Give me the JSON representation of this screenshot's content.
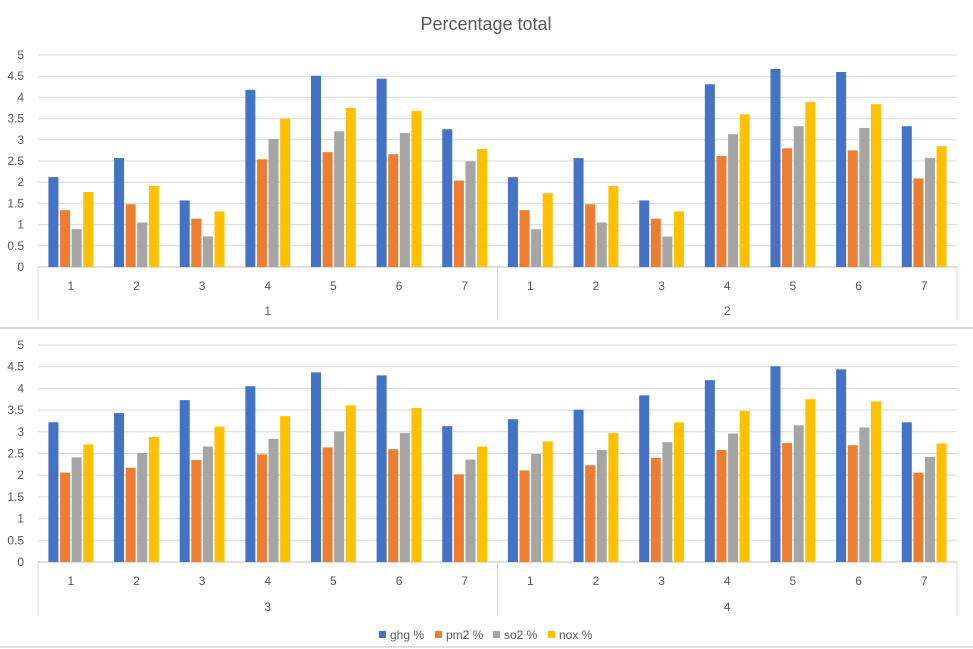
{
  "chart_data": {
    "type": "bar",
    "title": "Percentage total",
    "xlabel": "",
    "ylabel": "",
    "ylim": [
      0,
      5
    ],
    "y_ticks": [
      "0",
      "0.5",
      "1",
      "1.5",
      "2",
      "2.5",
      "3",
      "3.5",
      "4",
      "4.5",
      "5"
    ],
    "grid": true,
    "legend_position": "bottom",
    "series_names": [
      "ghg %",
      "pm2 %",
      "so2 %",
      "nox %"
    ],
    "colors": [
      "#4472C4",
      "#ED7D31",
      "#A5A5A5",
      "#FFC000"
    ],
    "panels": [
      {
        "groups": [
          {
            "label": "1",
            "categories": [
              "1",
              "2",
              "3",
              "4",
              "5",
              "6",
              "7"
            ],
            "values": [
              [
                2.12,
                1.34,
                0.89,
                1.77
              ],
              [
                2.57,
                1.48,
                1.05,
                1.91
              ],
              [
                1.57,
                1.14,
                0.72,
                1.31
              ],
              [
                4.18,
                2.54,
                3.02,
                3.5
              ],
              [
                4.51,
                2.71,
                3.2,
                3.75
              ],
              [
                4.44,
                2.66,
                3.16,
                3.68
              ],
              [
                3.25,
                2.04,
                2.49,
                2.78
              ]
            ]
          },
          {
            "label": "2",
            "categories": [
              "1",
              "2",
              "3",
              "4",
              "5",
              "6",
              "7"
            ],
            "values": [
              [
                2.12,
                1.34,
                0.89,
                1.74
              ],
              [
                2.57,
                1.48,
                1.05,
                1.91
              ],
              [
                1.57,
                1.14,
                0.72,
                1.31
              ],
              [
                4.31,
                2.62,
                3.13,
                3.6
              ],
              [
                4.67,
                2.8,
                3.32,
                3.89
              ],
              [
                4.6,
                2.75,
                3.28,
                3.84
              ],
              [
                3.32,
                2.09,
                2.57,
                2.85
              ]
            ]
          }
        ]
      },
      {
        "groups": [
          {
            "label": "3",
            "categories": [
              "1",
              "2",
              "3",
              "4",
              "5",
              "6",
              "7"
            ],
            "values": [
              [
                3.22,
                2.06,
                2.41,
                2.71
              ],
              [
                3.43,
                2.17,
                2.51,
                2.88
              ],
              [
                3.73,
                2.35,
                2.66,
                3.12
              ],
              [
                4.05,
                2.48,
                2.84,
                3.36
              ],
              [
                4.37,
                2.64,
                3.01,
                3.61
              ],
              [
                4.3,
                2.6,
                2.97,
                3.55
              ],
              [
                3.13,
                2.02,
                2.36,
                2.66
              ]
            ]
          },
          {
            "label": "4",
            "categories": [
              "1",
              "2",
              "3",
              "4",
              "5",
              "6",
              "7"
            ],
            "values": [
              [
                3.29,
                2.11,
                2.49,
                2.78
              ],
              [
                3.51,
                2.23,
                2.58,
                2.97
              ],
              [
                3.84,
                2.4,
                2.76,
                3.22
              ],
              [
                4.19,
                2.58,
                2.96,
                3.48
              ],
              [
                4.51,
                2.74,
                3.15,
                3.75
              ],
              [
                4.44,
                2.69,
                3.1,
                3.7
              ],
              [
                3.22,
                2.06,
                2.42,
                2.73
              ]
            ]
          }
        ]
      }
    ]
  }
}
